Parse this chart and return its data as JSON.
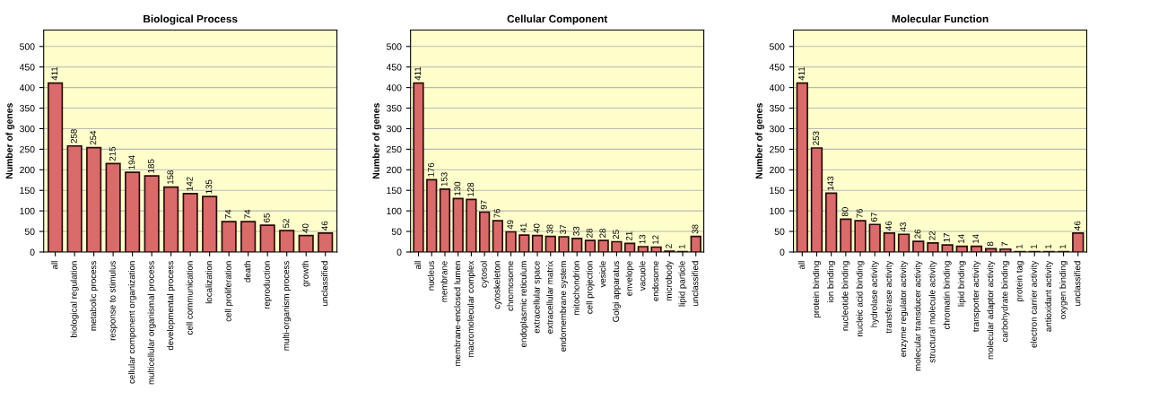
{
  "chart_data": [
    {
      "type": "bar",
      "title": "Biological Process",
      "ylabel": "Number of genes",
      "categories": [
        "all",
        "biological regulation",
        "metabolic process",
        "response to stimulus",
        "cellular component organization",
        "multicellular organismal process",
        "developmental process",
        "cell communication",
        "localization",
        "cell proliferation",
        "death",
        "reproduction",
        "multi-organism process",
        "growth",
        "unclassified"
      ],
      "values": [
        411,
        258,
        254,
        215,
        194,
        185,
        158,
        142,
        135,
        74,
        74,
        65,
        52,
        40,
        46
      ],
      "color": "#d96b6b",
      "ylim": [
        0,
        540
      ],
      "yticks": [
        0,
        50,
        100,
        150,
        200,
        250,
        300,
        350,
        400,
        450,
        500
      ],
      "grid": "y",
      "data_labels": true
    },
    {
      "type": "bar",
      "title": "Cellular Component",
      "ylabel": "Number of genes",
      "categories": [
        "all",
        "nucleus",
        "membrane",
        "membrane-enclosed lumen",
        "macromolecular complex",
        "cytosol",
        "cytoskeleton",
        "chromosome",
        "endoplasmic reticulum",
        "extracellular space",
        "extracellular matrix",
        "endomembrane system",
        "mitochondrion",
        "cell projection",
        "vesicle",
        "Golgi apparatus",
        "envelope",
        "vacuole",
        "endosome",
        "microbody",
        "lipid particle",
        "unclassified"
      ],
      "values": [
        411,
        176,
        153,
        130,
        128,
        97,
        76,
        49,
        41,
        40,
        38,
        37,
        33,
        28,
        28,
        25,
        21,
        13,
        12,
        2,
        1,
        38
      ],
      "color": "#d96b6b",
      "ylim": [
        0,
        540
      ],
      "yticks": [
        0,
        50,
        100,
        150,
        200,
        250,
        300,
        350,
        400,
        450,
        500
      ],
      "grid": "y",
      "data_labels": true
    },
    {
      "type": "bar",
      "title": "Molecular Function",
      "ylabel": "Number of genes",
      "categories": [
        "all",
        "protein binding",
        "ion binding",
        "nucleotide binding",
        "nucleic acid binding",
        "hydrolase activity",
        "transferase activity",
        "enzyme regulator activity",
        "molecular transducer activity",
        "structural molecule activity",
        "chromatin binding",
        "lipid binding",
        "transporter activity",
        "molecular adaptor activity",
        "carbohydrate binding",
        "protein tag",
        "electron carrier activity",
        "antioxidant activity",
        "oxygen binding",
        "unclassified"
      ],
      "values": [
        411,
        253,
        143,
        80,
        76,
        67,
        46,
        43,
        26,
        22,
        17,
        14,
        14,
        8,
        7,
        1,
        1,
        1,
        1,
        46
      ],
      "color": "#d96b6b",
      "ylim": [
        0,
        540
      ],
      "yticks": [
        0,
        50,
        100,
        150,
        200,
        250,
        300,
        350,
        400,
        450,
        500
      ],
      "grid": "y",
      "data_labels": true
    }
  ]
}
